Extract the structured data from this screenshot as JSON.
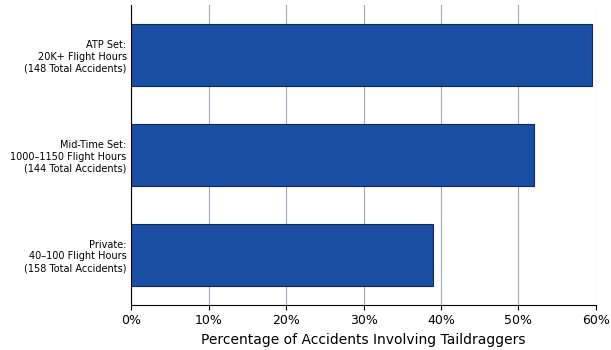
{
  "chart_data": {
    "type": "bar",
    "orientation": "horizontal",
    "categories": [
      "ATP Set:\n20K+ Flight Hours\n(148 Total Accidents)",
      "Mid-Time Set:\n1000–1150 Flight Hours\n(144 Total Accidents)",
      "Private:\n40–100 Flight Hours\n(158 Total Accidents)"
    ],
    "values": [
      59.5,
      52,
      39
    ],
    "color": "#1a4fa3",
    "xlabel": "Percentage of Accidents Involving Taildraggers",
    "xlim": [
      0,
      60
    ],
    "xticks": [
      {
        "value": 0,
        "label": "0%"
      },
      {
        "value": 10,
        "label": "10%"
      },
      {
        "value": 20,
        "label": "20%"
      },
      {
        "value": 30,
        "label": "30%"
      },
      {
        "value": 40,
        "label": "40%"
      },
      {
        "value": 50,
        "label": "50%"
      },
      {
        "value": 60,
        "label": "60%"
      }
    ],
    "grid": true
  }
}
